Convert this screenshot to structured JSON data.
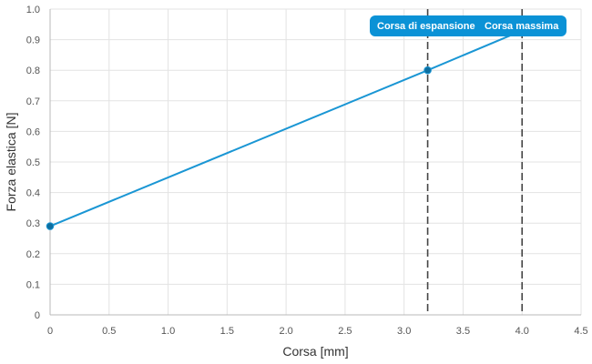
{
  "chart_data": {
    "type": "line",
    "title": "",
    "xlabel": "Corsa [mm]",
    "ylabel": "Forza elastica [N]",
    "xlim": [
      0,
      4.5
    ],
    "ylim": [
      0,
      1.0
    ],
    "x_ticks": [
      0,
      0.5,
      1.0,
      1.5,
      2.0,
      2.5,
      3.0,
      3.5,
      4.0,
      4.5
    ],
    "x_tick_labels": [
      "0",
      "0.5",
      "1.0",
      "1.5",
      "2.0",
      "2.5",
      "3.0",
      "3.5",
      "4.0",
      "4.5"
    ],
    "y_ticks": [
      0,
      0.1,
      0.2,
      0.3,
      0.4,
      0.5,
      0.6,
      0.7,
      0.8,
      0.9,
      1.0
    ],
    "y_tick_labels": [
      "0",
      "0.1",
      "0.2",
      "0.3",
      "0.4",
      "0.5",
      "0.6",
      "0.7",
      "0.8",
      "0.9",
      "1.0"
    ],
    "grid": true,
    "series": [
      {
        "x": [
          0,
          3.2,
          4.0
        ],
        "y": [
          0.29,
          0.8,
          0.93
        ],
        "markers": [
          true,
          true,
          false
        ],
        "color": "#1a96d4"
      }
    ],
    "vertical_lines": [
      {
        "x": 3.2,
        "label": "Corsa di espansione"
      },
      {
        "x": 4.0,
        "label": "Corsa massima"
      }
    ],
    "callout_color": "#0b92d6",
    "guide_color": "#444444",
    "grid_color": "#e3e3e3"
  }
}
